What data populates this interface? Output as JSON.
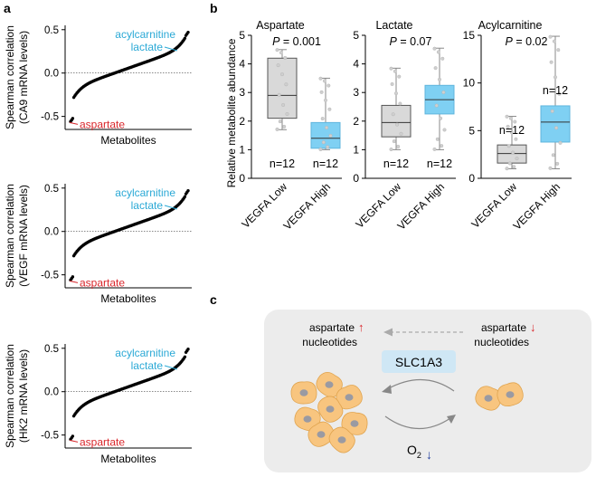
{
  "panels": {
    "a": "a",
    "b": "b",
    "c": "c"
  },
  "colors": {
    "red": "#d9262b",
    "blue": "#2ba9d6",
    "low_box": "#d9d9d9",
    "high_box": "#7fd0f3",
    "cell": "#f8c57f",
    "nucleus": "#9a9aa2",
    "panel_c_bg": "#ececec",
    "slc_box": "#cfe7f5"
  },
  "panel_a": {
    "xlabel": "Metabolites",
    "yticks": [
      "0.5",
      "0.0",
      "-0.5"
    ],
    "plots": [
      {
        "ylabel_line1": "Spearman correlation",
        "ylabel_line2": "(CA9 mRNA levels)",
        "label_acyl": "acylcarnitine",
        "label_lactate": "lactate",
        "label_aspartate": "aspartate",
        "ylim": [
          -0.65,
          0.55
        ],
        "start": -0.56,
        "end": 0.47
      },
      {
        "ylabel_line1": "Spearman correlation",
        "ylabel_line2": "(VEGF mRNA levels)",
        "label_acyl": "acylcarnitine",
        "label_lactate": "lactate",
        "label_aspartate": "aspartate",
        "ylim": [
          -0.65,
          0.55
        ],
        "start": -0.56,
        "end": 0.47
      },
      {
        "ylabel_line1": "Spearman correlation",
        "ylabel_line2": "(HK2 mRNA levels)",
        "label_acyl": "acylcarnitine",
        "label_lactate": "lactate",
        "label_aspartate": "aspartate",
        "ylim": [
          -0.65,
          0.55
        ],
        "start": -0.55,
        "end": 0.49
      }
    ]
  },
  "panel_b": {
    "ylabel": "Relative metabolite abundance",
    "categories": [
      "VEGFA Low",
      "VEGFA High"
    ],
    "n_labels": [
      "n=12",
      "n=12"
    ],
    "chart_data": [
      {
        "type": "box",
        "title": "Aspartate",
        "p_prefix": "P",
        "p_value": "= 0.001",
        "ylim": [
          0,
          5
        ],
        "yticks": [
          "0",
          "1",
          "2",
          "3",
          "4",
          "5"
        ],
        "series": [
          {
            "name": "VEGFA Low",
            "min": 1.7,
            "q1": 2.1,
            "median": 2.9,
            "q3": 4.2,
            "max": 4.5
          },
          {
            "name": "VEGFA High",
            "min": 1.0,
            "q1": 1.05,
            "median": 1.4,
            "q3": 1.95,
            "max": 3.5
          }
        ]
      },
      {
        "type": "box",
        "title": "Lactate",
        "p_prefix": "P",
        "p_value": "= 0.07",
        "ylim": [
          0,
          5
        ],
        "yticks": [
          "0",
          "1",
          "2",
          "3",
          "4",
          "5"
        ],
        "series": [
          {
            "name": "VEGFA Low",
            "min": 1.0,
            "q1": 1.45,
            "median": 1.95,
            "q3": 2.55,
            "max": 3.85
          },
          {
            "name": "VEGFA High",
            "min": 1.0,
            "q1": 2.25,
            "median": 2.75,
            "q3": 3.25,
            "max": 4.55
          }
        ]
      },
      {
        "type": "box",
        "title": "Acylcarnitine",
        "p_prefix": "P",
        "p_value": "= 0.02",
        "ylim": [
          0,
          15
        ],
        "yticks": [
          "0",
          "5",
          "10",
          "15"
        ],
        "series": [
          {
            "name": "VEGFA Low",
            "min": 1.0,
            "q1": 1.6,
            "median": 2.6,
            "q3": 3.5,
            "max": 6.5
          },
          {
            "name": "VEGFA High",
            "min": 1.0,
            "q1": 3.8,
            "median": 5.9,
            "q3": 7.6,
            "max": 14.9
          }
        ]
      }
    ]
  },
  "panel_c": {
    "left_line1": "aspartate",
    "left_line2": "nucleotides",
    "right_line1": "aspartate",
    "right_line2": "nucleotides",
    "arrow_up": "↑",
    "arrow_down": "↓",
    "slc_label": "SLC1A3",
    "o2_main": "O",
    "o2_sub": "2",
    "o2_arrow": "↓"
  }
}
